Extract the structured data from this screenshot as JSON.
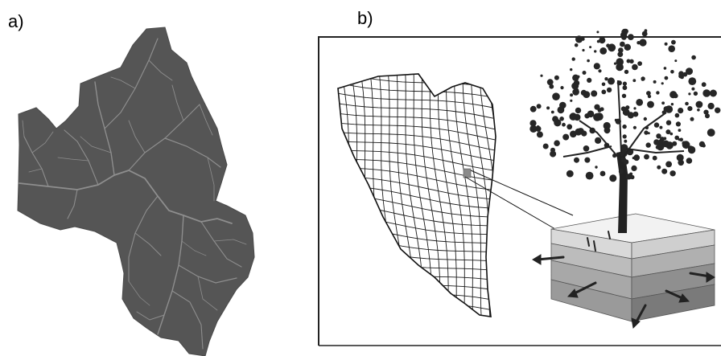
{
  "panels": {
    "a": {
      "label": "a)"
    },
    "b": {
      "label": "b)"
    }
  },
  "colors": {
    "basin_fill": "#555555",
    "stream_line": "#8e8e8e",
    "grid_line": "#1a1a1a",
    "soil_top": "#f2f2f2",
    "soil_layer_2": "#d9d9d9",
    "soil_layer_3": "#bcbcbc",
    "soil_layer_4": "#a8a8a8",
    "tree": "#222222"
  }
}
